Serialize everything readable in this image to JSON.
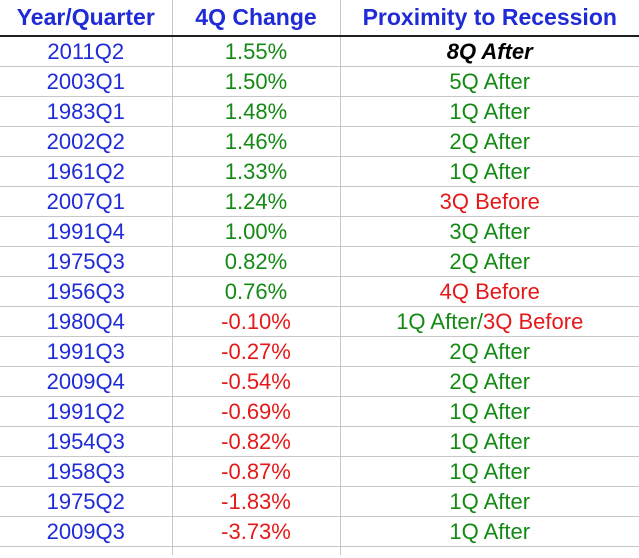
{
  "colors": {
    "year": "#1f2bd6",
    "positive": "#148a14",
    "negative": "#e41a1a",
    "header": "#1f2bd6",
    "emphasis": "#000000"
  },
  "headers": {
    "col1": "Year/Quarter",
    "col2": "4Q Change",
    "col3": "Proximity to Recession"
  },
  "rows": [
    {
      "period": "2011Q2",
      "change": "1.55%",
      "change_sign": "positive",
      "prox": [
        {
          "text": "8Q After",
          "style": "emphasis"
        }
      ]
    },
    {
      "period": "2003Q1",
      "change": "1.50%",
      "change_sign": "positive",
      "prox": [
        {
          "text": "5Q After",
          "style": "positive"
        }
      ]
    },
    {
      "period": "1983Q1",
      "change": "1.48%",
      "change_sign": "positive",
      "prox": [
        {
          "text": "1Q After",
          "style": "positive"
        }
      ]
    },
    {
      "period": "2002Q2",
      "change": "1.46%",
      "change_sign": "positive",
      "prox": [
        {
          "text": "2Q After",
          "style": "positive"
        }
      ]
    },
    {
      "period": "1961Q2",
      "change": "1.33%",
      "change_sign": "positive",
      "prox": [
        {
          "text": "1Q After",
          "style": "positive"
        }
      ]
    },
    {
      "period": "2007Q1",
      "change": "1.24%",
      "change_sign": "positive",
      "prox": [
        {
          "text": "3Q Before",
          "style": "negative"
        }
      ]
    },
    {
      "period": "1991Q4",
      "change": "1.00%",
      "change_sign": "positive",
      "prox": [
        {
          "text": "3Q After",
          "style": "positive"
        }
      ]
    },
    {
      "period": "1975Q3",
      "change": "0.82%",
      "change_sign": "positive",
      "prox": [
        {
          "text": "2Q After",
          "style": "positive"
        }
      ]
    },
    {
      "period": "1956Q3",
      "change": "0.76%",
      "change_sign": "positive",
      "prox": [
        {
          "text": "4Q Before",
          "style": "negative"
        }
      ]
    },
    {
      "period": "1980Q4",
      "change": "-0.10%",
      "change_sign": "negative",
      "prox": [
        {
          "text": "1Q After",
          "style": "positive"
        },
        {
          "text": "/",
          "style": "positive"
        },
        {
          "text": "3Q Before",
          "style": "negative"
        }
      ]
    },
    {
      "period": "1991Q3",
      "change": "-0.27%",
      "change_sign": "negative",
      "prox": [
        {
          "text": "2Q After",
          "style": "positive"
        }
      ]
    },
    {
      "period": "2009Q4",
      "change": "-0.54%",
      "change_sign": "negative",
      "prox": [
        {
          "text": "2Q After",
          "style": "positive"
        }
      ]
    },
    {
      "period": "1991Q2",
      "change": "-0.69%",
      "change_sign": "negative",
      "prox": [
        {
          "text": "1Q After",
          "style": "positive"
        }
      ]
    },
    {
      "period": "1954Q3",
      "change": "-0.82%",
      "change_sign": "negative",
      "prox": [
        {
          "text": "1Q After",
          "style": "positive"
        }
      ]
    },
    {
      "period": "1958Q3",
      "change": "-0.87%",
      "change_sign": "negative",
      "prox": [
        {
          "text": "1Q After",
          "style": "positive"
        }
      ]
    },
    {
      "period": "1975Q2",
      "change": "-1.83%",
      "change_sign": "negative",
      "prox": [
        {
          "text": "1Q After",
          "style": "positive"
        }
      ]
    },
    {
      "period": "2009Q3",
      "change": "-3.73%",
      "change_sign": "negative",
      "prox": [
        {
          "text": "1Q After",
          "style": "positive"
        }
      ]
    }
  ]
}
